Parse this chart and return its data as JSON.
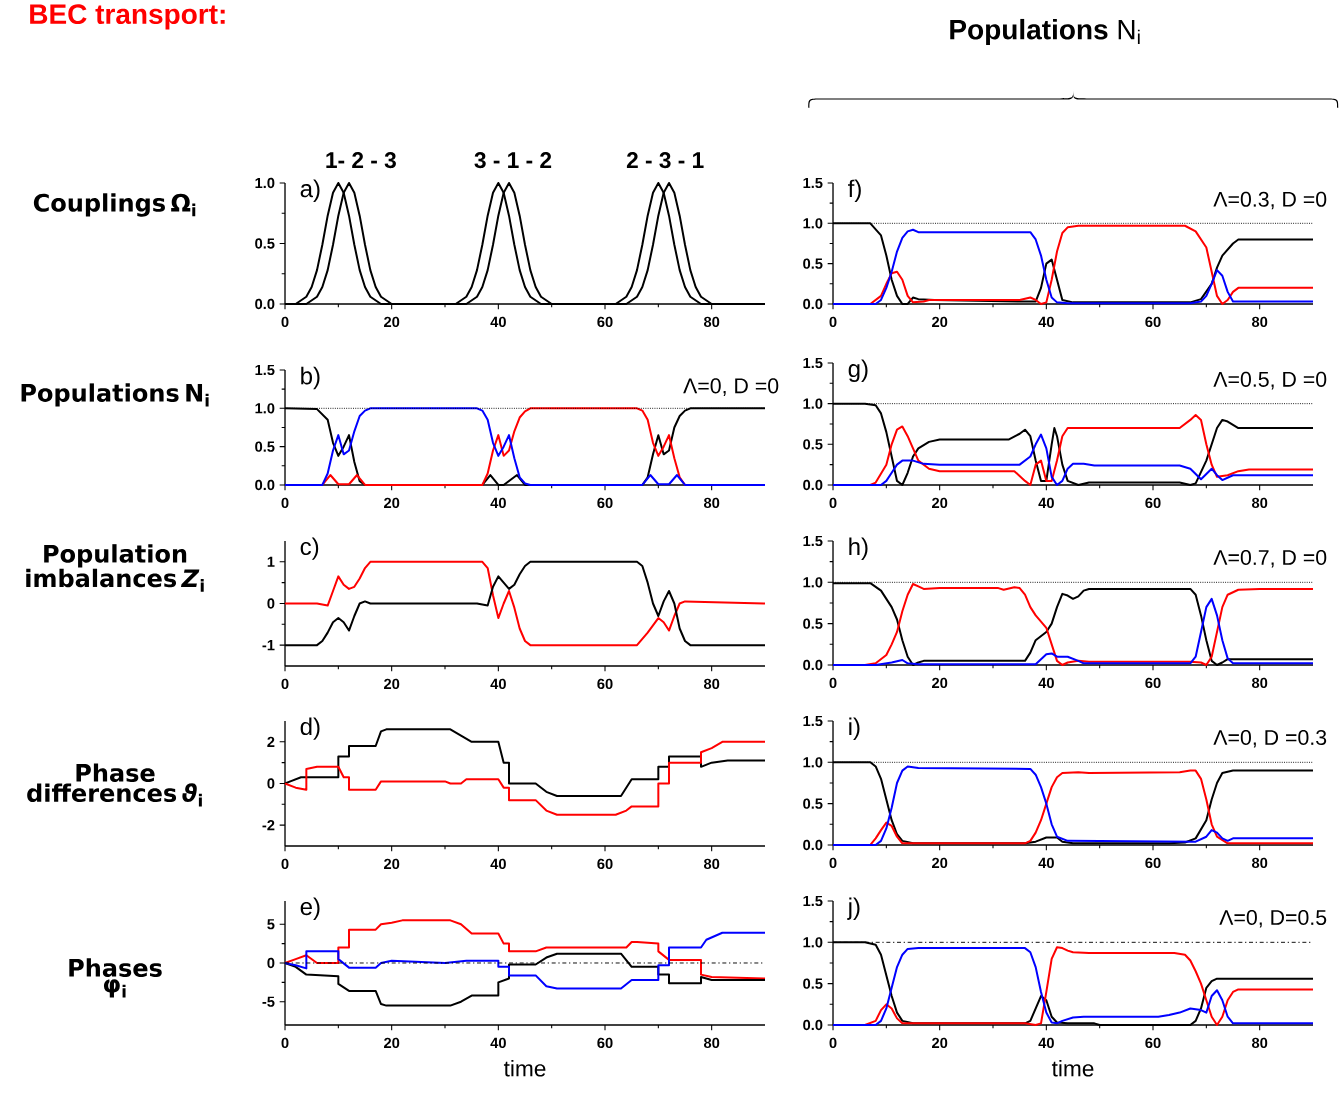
{
  "chart_data": [
    {
      "type": "line",
      "title": "BEC transport:",
      "ylabel": "Couplings Ω$_{i}$",
      "annotations": [
        "a)",
        "1- 2 - 3",
        "3 - 1 - 2",
        "2 - 3 - 1"
      ],
      "xlim": [
        0,
        90
      ],
      "xticks": [
        0,
        20,
        40,
        60,
        80
      ],
      "ylim": [
        0,
        1
      ],
      "yticks": [
        {
          "value": 0,
          "label": "0.0"
        },
        {
          "value": 0.5,
          "label": "0.5"
        },
        {
          "value": 1,
          "label": "1.0"
        }
      ],
      "series": [
        {
          "color": "#000000",
          "x": [
            0,
            2,
            4,
            5,
            6,
            7,
            8,
            9,
            10,
            11,
            12,
            13,
            14,
            15,
            16,
            18,
            32,
            34,
            35,
            36,
            37,
            38,
            39,
            40,
            41,
            42,
            43,
            44,
            45,
            46,
            48,
            62,
            64,
            65,
            66,
            67,
            68,
            69,
            70,
            71,
            72,
            73,
            74,
            75,
            76,
            78,
            90
          ],
          "values": [
            0,
            0,
            0.06,
            0.14,
            0.28,
            0.49,
            0.73,
            0.92,
            1,
            0.92,
            0.73,
            0.49,
            0.28,
            0.14,
            0.06,
            0,
            0,
            0.06,
            0.14,
            0.28,
            0.49,
            0.73,
            0.92,
            1,
            0.92,
            0.73,
            0.49,
            0.28,
            0.14,
            0.06,
            0,
            0,
            0.06,
            0.14,
            0.28,
            0.49,
            0.73,
            0.92,
            1,
            0.92,
            0.73,
            0.49,
            0.28,
            0.14,
            0.06,
            0,
            0
          ]
        },
        {
          "color": "#000000",
          "x": [
            0,
            4,
            6,
            7,
            8,
            9,
            10,
            11,
            12,
            13,
            14,
            15,
            16,
            17,
            18,
            20,
            34,
            36,
            37,
            38,
            39,
            40,
            41,
            42,
            43,
            44,
            45,
            46,
            47,
            48,
            50,
            64,
            66,
            67,
            68,
            69,
            70,
            71,
            72,
            73,
            74,
            75,
            76,
            77,
            78,
            80,
            90
          ],
          "values": [
            0,
            0,
            0.06,
            0.14,
            0.28,
            0.49,
            0.73,
            0.92,
            1,
            0.92,
            0.73,
            0.49,
            0.28,
            0.14,
            0.06,
            0,
            0,
            0.06,
            0.14,
            0.28,
            0.49,
            0.73,
            0.92,
            1,
            0.92,
            0.73,
            0.49,
            0.28,
            0.14,
            0.06,
            0,
            0,
            0.06,
            0.14,
            0.28,
            0.49,
            0.73,
            0.92,
            1,
            0.92,
            0.73,
            0.49,
            0.28,
            0.14,
            0.06,
            0,
            0
          ]
        }
      ]
    },
    {
      "type": "line",
      "ylabel": "Populations N$_{i}$",
      "annotations": [
        "b)",
        "Λ=0, D =0"
      ],
      "xlim": [
        0,
        90
      ],
      "xticks": [
        0,
        20,
        40,
        60,
        80
      ],
      "ylim": [
        0,
        1.5
      ],
      "yticks": [
        {
          "value": 0,
          "label": "0.0"
        },
        {
          "value": 0.5,
          "label": "0.5"
        },
        {
          "value": 1,
          "label": "1.0"
        },
        {
          "value": 1.5,
          "label": "1.5"
        }
      ],
      "ref_lines": [
        {
          "axis": "y",
          "value": 1,
          "line_style": "dotted"
        }
      ],
      "series": [
        {
          "color": "#000000",
          "x": [
            0,
            6,
            8,
            9,
            10,
            11,
            12,
            13,
            14,
            15,
            37,
            38.5,
            40,
            41,
            43.5,
            45,
            67,
            68,
            69,
            70,
            71,
            72,
            73,
            74,
            75,
            76,
            90
          ],
          "values": [
            1,
            0.99,
            0.85,
            0.55,
            0.38,
            0.5,
            0.65,
            0.3,
            0.05,
            0,
            0,
            0.13,
            0,
            0,
            0.13,
            0,
            0,
            0.1,
            0.4,
            0.65,
            0.4,
            0.45,
            0.75,
            0.9,
            0.97,
            1,
            1
          ]
        },
        {
          "color": "#ff0000",
          "x": [
            0,
            7,
            8.5,
            10,
            12,
            13.5,
            15,
            37,
            38,
            39,
            40,
            41,
            42,
            43,
            44,
            45,
            46,
            66,
            67,
            68,
            69,
            70,
            71,
            72,
            73,
            74,
            75,
            90
          ],
          "values": [
            0,
            0,
            0.13,
            0.01,
            0.01,
            0.13,
            0,
            0,
            0.15,
            0.45,
            0.65,
            0.38,
            0.45,
            0.7,
            0.88,
            0.96,
            1,
            1,
            0.97,
            0.85,
            0.55,
            0.38,
            0.5,
            0.65,
            0.35,
            0.1,
            0,
            0
          ]
        },
        {
          "color": "#0000ff",
          "x": [
            0,
            7,
            8,
            9,
            10,
            11,
            12,
            13,
            14,
            15,
            16,
            36,
            37,
            38,
            39,
            40,
            41,
            42,
            43,
            44,
            45,
            46,
            67,
            68.5,
            70,
            72,
            73.5,
            75,
            90
          ],
          "values": [
            0,
            0,
            0.15,
            0.45,
            0.65,
            0.4,
            0.45,
            0.7,
            0.9,
            0.97,
            1,
            1,
            0.97,
            0.85,
            0.55,
            0.38,
            0.5,
            0.65,
            0.35,
            0.1,
            0.02,
            0,
            0,
            0.13,
            0.01,
            0.01,
            0.13,
            0,
            0
          ]
        }
      ]
    },
    {
      "type": "line",
      "ylabel": "Population imbalances *Z*$_{i}$",
      "annotations": [
        "c)"
      ],
      "xlim": [
        0,
        90
      ],
      "xticks": [
        0,
        20,
        40,
        60,
        80
      ],
      "ylim": [
        -1.5,
        1.5
      ],
      "yticks": [
        -1,
        0,
        1
      ],
      "series": [
        {
          "color": "#ff0000",
          "x": [
            0,
            6,
            8,
            9,
            10,
            11,
            12,
            13,
            14,
            15,
            16,
            37,
            38,
            39,
            40,
            41,
            42,
            43,
            44,
            45,
            46,
            66,
            68,
            70,
            71,
            72,
            73,
            74,
            75,
            90
          ],
          "values": [
            0,
            0,
            -0.05,
            0.3,
            0.65,
            0.45,
            0.35,
            0.4,
            0.6,
            0.85,
            1,
            1,
            0.85,
            0.2,
            -0.35,
            0,
            0.3,
            -0.1,
            -0.6,
            -0.9,
            -1,
            -1,
            -0.7,
            -0.35,
            -0.45,
            -0.65,
            -0.3,
            0,
            0.05,
            0
          ]
        },
        {
          "color": "#000000",
          "x": [
            0,
            6,
            7,
            8,
            9,
            10,
            11,
            12,
            13,
            14,
            15,
            16,
            36,
            38,
            39,
            40,
            41,
            42,
            43,
            44,
            45,
            46,
            66,
            67,
            68,
            69,
            70,
            71,
            72,
            73,
            74,
            75,
            76,
            90
          ],
          "values": [
            -1,
            -1,
            -0.9,
            -0.7,
            -0.45,
            -0.35,
            -0.45,
            -0.65,
            -0.3,
            0,
            0.05,
            0,
            0,
            -0.05,
            0.4,
            0.65,
            0.5,
            0.35,
            0.45,
            0.7,
            0.9,
            1,
            1,
            0.9,
            0.5,
            0,
            -0.3,
            0.05,
            0.3,
            0,
            -0.6,
            -0.9,
            -1,
            -1
          ]
        }
      ]
    },
    {
      "type": "line",
      "ylabel": "Phase differences *ϑ*$_{i}$",
      "annotations": [
        "d)"
      ],
      "xlim": [
        0,
        90
      ],
      "xticks": [
        0,
        20,
        40,
        60,
        80
      ],
      "ylim": [
        -3,
        3
      ],
      "yticks": [
        -2,
        0,
        2
      ],
      "series": [
        {
          "color": "#000000",
          "x": [
            0,
            1,
            3,
            10,
            10,
            12,
            12,
            17,
            18,
            19,
            31,
            33,
            35,
            40,
            41,
            42,
            42,
            47,
            49,
            51,
            63,
            65,
            70,
            70,
            72,
            72,
            78,
            78,
            80,
            83,
            90
          ],
          "values": [
            0,
            0.1,
            0.3,
            0.3,
            1.3,
            1.3,
            1.8,
            1.8,
            2.5,
            2.6,
            2.6,
            2.3,
            2.0,
            2.0,
            1.0,
            1.0,
            0,
            0,
            -0.4,
            -0.6,
            -0.6,
            0.2,
            0.2,
            0.8,
            0.8,
            1.3,
            1.3,
            0.8,
            1.0,
            1.1,
            1.1
          ]
        },
        {
          "color": "#ff0000",
          "x": [
            0,
            2,
            4,
            4,
            6,
            10,
            11,
            12,
            12,
            17,
            18,
            30,
            31,
            33,
            34,
            40,
            41,
            42,
            42,
            47,
            49,
            51,
            62,
            64,
            65,
            70,
            70,
            72,
            72,
            78,
            78,
            80,
            82,
            90
          ],
          "values": [
            0,
            -0.2,
            -0.3,
            0.7,
            0.8,
            0.8,
            0.3,
            0.3,
            -0.3,
            -0.3,
            0.1,
            0.1,
            0,
            0,
            0.2,
            0.2,
            -0.2,
            -0.2,
            -0.8,
            -0.8,
            -1.3,
            -1.5,
            -1.5,
            -1.3,
            -1.1,
            -1.1,
            0,
            0,
            1.0,
            1.0,
            1.5,
            1.7,
            2.0,
            2.0
          ]
        }
      ]
    },
    {
      "type": "line",
      "ylabel": "Phases φ$_{i}$",
      "xlabel": "time",
      "annotations": [
        "e)"
      ],
      "xlim": [
        0,
        90
      ],
      "xticks": [
        0,
        20,
        40,
        60,
        80
      ],
      "ylim": [
        -8,
        8
      ],
      "yticks": [
        -5,
        0,
        5
      ],
      "ref_lines": [
        {
          "axis": "y",
          "value": 0,
          "line_style": "dashed"
        }
      ],
      "series": [
        {
          "color": "#ff0000",
          "x": [
            0,
            2,
            4,
            6,
            10,
            10,
            12,
            12,
            17,
            18,
            20,
            22,
            31,
            33,
            35,
            40,
            41,
            42,
            42,
            47,
            49,
            62,
            64,
            65,
            66,
            70,
            70,
            72,
            78,
            78,
            80,
            90
          ],
          "values": [
            0,
            0.5,
            1,
            0,
            0,
            2,
            2,
            4.3,
            4.3,
            5,
            5.2,
            5.5,
            5.5,
            5,
            3.8,
            3.8,
            2.5,
            2.5,
            1.5,
            1.5,
            2,
            2,
            2,
            2.7,
            2.7,
            2.5,
            1.5,
            0.4,
            0.4,
            -1.5,
            -1.8,
            -2
          ]
        },
        {
          "color": "#000000",
          "x": [
            0,
            2,
            4,
            10,
            10,
            12,
            17,
            18,
            19,
            31,
            33,
            35,
            40,
            40,
            42,
            42,
            47,
            49,
            51,
            63,
            65,
            70,
            70,
            72,
            72,
            78,
            78,
            80,
            90
          ],
          "values": [
            0,
            -0.5,
            -1.5,
            -1.7,
            -2.7,
            -3.6,
            -3.6,
            -5.3,
            -5.5,
            -5.5,
            -5,
            -4.2,
            -4.2,
            -2.5,
            -2,
            -0.2,
            -0.2,
            0.7,
            1.2,
            1.2,
            -0.5,
            -0.5,
            -1.5,
            -1.5,
            -2.6,
            -2.6,
            -1.8,
            -2.2,
            -2.2
          ]
        },
        {
          "color": "#0000ff",
          "x": [
            0,
            2,
            4,
            4,
            10,
            10,
            12,
            17,
            18,
            20,
            30,
            34,
            40,
            40,
            42,
            42,
            47,
            49,
            51,
            63,
            65,
            70,
            70,
            72,
            72,
            78,
            79,
            82,
            90
          ],
          "values": [
            0,
            -0.3,
            -0.7,
            1.5,
            1.5,
            0.5,
            -0.6,
            -0.6,
            0,
            0.3,
            0,
            0.3,
            0.3,
            -0.5,
            -0.5,
            -1.6,
            -1.6,
            -3,
            -3.3,
            -3.3,
            -2.2,
            -2.2,
            -0.3,
            -0.3,
            2,
            2,
            3,
            3.9,
            3.9
          ]
        }
      ]
    },
    {
      "type": "line",
      "title": "**Populations** N$_{i}$",
      "annotations": [
        "f)",
        "Λ=0.3, D =0"
      ],
      "xlim": [
        0,
        90
      ],
      "xticks": [
        0,
        20,
        40,
        60,
        80
      ],
      "ylim": [
        0,
        1.5
      ],
      "yticks": [
        {
          "value": 0,
          "label": "0.0"
        },
        {
          "value": 0.5,
          "label": "0.5"
        },
        {
          "value": 1,
          "label": "1.0"
        },
        {
          "value": 1.5,
          "label": "1.5"
        }
      ],
      "ref_lines": [
        {
          "axis": "y",
          "value": 1,
          "line_style": "dotted"
        }
      ],
      "series": [
        {
          "color": "#000000",
          "x": [
            0,
            7,
            9,
            10,
            11,
            12,
            13,
            14,
            15,
            16,
            19,
            36,
            38,
            39,
            40,
            41,
            42,
            43,
            45,
            67,
            69,
            71,
            72,
            73,
            75,
            76,
            90
          ],
          "values": [
            1,
            1,
            0.85,
            0.6,
            0.3,
            0.1,
            0,
            0,
            0.08,
            0.06,
            0.05,
            0.03,
            0.03,
            0.2,
            0.5,
            0.55,
            0.3,
            0.05,
            0.02,
            0.02,
            0.06,
            0.25,
            0.45,
            0.6,
            0.75,
            0.8,
            0.8
          ]
        },
        {
          "color": "#ff0000",
          "x": [
            0,
            7,
            9,
            10,
            11,
            12,
            13,
            14,
            15,
            17,
            18,
            35,
            37,
            38,
            39,
            40,
            41,
            42,
            43,
            44,
            46,
            66,
            68,
            70,
            71,
            72,
            73,
            74,
            75,
            76,
            90
          ],
          "values": [
            0,
            0,
            0.1,
            0.25,
            0.38,
            0.4,
            0.3,
            0.1,
            0.02,
            0.03,
            0.05,
            0.05,
            0.08,
            0.05,
            0,
            0.02,
            0.3,
            0.65,
            0.88,
            0.95,
            0.97,
            0.97,
            0.9,
            0.7,
            0.4,
            0.1,
            0,
            0.05,
            0.15,
            0.2,
            0.2
          ]
        },
        {
          "color": "#0000ff",
          "x": [
            0,
            8,
            9,
            10,
            11,
            12,
            13,
            14,
            15,
            16,
            37,
            38,
            39,
            40,
            41,
            42,
            44,
            67,
            69,
            70,
            71,
            72,
            73,
            74,
            75,
            90
          ],
          "values": [
            0,
            0,
            0.05,
            0.2,
            0.4,
            0.65,
            0.82,
            0.9,
            0.92,
            0.89,
            0.89,
            0.8,
            0.6,
            0.3,
            0.08,
            0.02,
            0.01,
            0.01,
            0.03,
            0.1,
            0.25,
            0.42,
            0.35,
            0.15,
            0.03,
            0.03
          ]
        }
      ]
    },
    {
      "type": "line",
      "annotations": [
        "g)",
        "Λ=0.5, D =0"
      ],
      "xlim": [
        0,
        90
      ],
      "xticks": [
        0,
        20,
        40,
        60,
        80
      ],
      "ylim": [
        0,
        1.5
      ],
      "yticks": [
        {
          "value": 0,
          "label": "0.0"
        },
        {
          "value": 0.5,
          "label": "0.5"
        },
        {
          "value": 1,
          "label": "1.0"
        },
        {
          "value": 1.5,
          "label": "1.5"
        }
      ],
      "ref_lines": [
        {
          "axis": "y",
          "value": 1,
          "line_style": "dotted"
        }
      ],
      "series": [
        {
          "color": "#000000",
          "x": [
            0,
            6,
            8,
            9,
            10,
            11,
            12,
            13,
            14,
            15,
            16,
            18,
            20,
            33,
            35,
            36,
            37,
            38,
            39,
            40,
            41,
            41.5,
            42,
            43,
            44,
            46,
            48,
            65,
            67,
            68,
            70,
            72,
            73,
            74,
            76,
            90
          ],
          "values": [
            1,
            1,
            0.98,
            0.88,
            0.65,
            0.35,
            0.05,
            0,
            0.15,
            0.35,
            0.45,
            0.53,
            0.56,
            0.56,
            0.63,
            0.68,
            0.6,
            0.3,
            0.05,
            0.05,
            0.5,
            0.7,
            0.6,
            0.25,
            0.05,
            0,
            0.03,
            0.03,
            0,
            0.02,
            0.3,
            0.7,
            0.8,
            0.78,
            0.7,
            0.7
          ]
        },
        {
          "color": "#ff0000",
          "x": [
            0,
            7,
            8,
            10,
            11,
            12,
            13,
            14,
            15,
            16,
            18,
            20,
            34,
            36,
            37,
            38,
            39,
            40,
            41,
            42,
            43,
            44,
            46,
            65,
            67,
            68,
            69,
            70,
            71,
            72,
            74,
            76,
            78,
            90
          ],
          "values": [
            0,
            0,
            0.03,
            0.25,
            0.5,
            0.68,
            0.72,
            0.6,
            0.45,
            0.3,
            0.2,
            0.17,
            0.17,
            0.05,
            0,
            0.25,
            0.3,
            0.05,
            0.05,
            0.3,
            0.6,
            0.7,
            0.7,
            0.7,
            0.8,
            0.86,
            0.8,
            0.5,
            0.25,
            0.1,
            0.12,
            0.17,
            0.19,
            0.19
          ]
        },
        {
          "color": "#0000ff",
          "x": [
            0,
            9,
            10,
            11,
            12,
            13,
            15,
            17,
            20,
            35,
            37,
            38,
            39,
            40,
            41,
            42,
            43,
            44,
            45,
            47,
            49,
            65,
            67,
            69,
            71,
            72,
            73,
            75,
            90
          ],
          "values": [
            0,
            0,
            0.05,
            0.15,
            0.25,
            0.3,
            0.3,
            0.26,
            0.25,
            0.25,
            0.35,
            0.5,
            0.62,
            0.45,
            0.1,
            0,
            0.05,
            0.2,
            0.26,
            0.26,
            0.24,
            0.24,
            0.2,
            0.07,
            0.2,
            0.12,
            0.06,
            0.12,
            0.12
          ]
        }
      ]
    },
    {
      "type": "line",
      "annotations": [
        "h)",
        "Λ=0.7, D =0"
      ],
      "xlim": [
        0,
        90
      ],
      "xticks": [
        0,
        20,
        40,
        60,
        80
      ],
      "ylim": [
        0,
        1.5
      ],
      "yticks": [
        {
          "value": 0,
          "label": "0.0"
        },
        {
          "value": 0.5,
          "label": "0.5"
        },
        {
          "value": 1,
          "label": "1.0"
        },
        {
          "value": 1.5,
          "label": "1.5"
        }
      ],
      "ref_lines": [
        {
          "axis": "y",
          "value": 1,
          "line_style": "dotted"
        }
      ],
      "series": [
        {
          "color": "#000000",
          "x": [
            0,
            7,
            9,
            11,
            12,
            13,
            14,
            15,
            16,
            17,
            20,
            35,
            36,
            37,
            38,
            40,
            41,
            42,
            43,
            44,
            45,
            46,
            47,
            48,
            67,
            68,
            69,
            70,
            71,
            72,
            73,
            74,
            90
          ],
          "values": [
            0.99,
            0.99,
            0.9,
            0.7,
            0.55,
            0.3,
            0.1,
            0,
            0.03,
            0.05,
            0.05,
            0.05,
            0.05,
            0.15,
            0.3,
            0.4,
            0.5,
            0.7,
            0.86,
            0.84,
            0.8,
            0.83,
            0.9,
            0.92,
            0.92,
            0.85,
            0.6,
            0.3,
            0.05,
            0,
            0.03,
            0.07,
            0.07
          ]
        },
        {
          "color": "#ff0000",
          "x": [
            0,
            6,
            8,
            10,
            11,
            12,
            13,
            14,
            15,
            16,
            17,
            20,
            31,
            32,
            34,
            35,
            36,
            37,
            38,
            40,
            41,
            42,
            43,
            44,
            46,
            48,
            67,
            69,
            70,
            71,
            72,
            73,
            74,
            76,
            80,
            90
          ],
          "values": [
            0,
            0,
            0.02,
            0.12,
            0.25,
            0.4,
            0.65,
            0.85,
            0.98,
            0.95,
            0.92,
            0.93,
            0.93,
            0.91,
            0.94,
            0.93,
            0.85,
            0.7,
            0.6,
            0.45,
            0.25,
            0.05,
            0,
            0.03,
            0.05,
            0.04,
            0.04,
            0.03,
            0,
            0.1,
            0.4,
            0.7,
            0.85,
            0.91,
            0.92,
            0.92
          ]
        },
        {
          "color": "#0000ff",
          "x": [
            0,
            8,
            11,
            13,
            14,
            16,
            38,
            39,
            40,
            41,
            42,
            44,
            46,
            47,
            67,
            68,
            69,
            70,
            71,
            72,
            73,
            74,
            75,
            90
          ],
          "values": [
            0,
            0,
            0.03,
            0.06,
            0.02,
            0.01,
            0.01,
            0.07,
            0.13,
            0.14,
            0.1,
            0.1,
            0.05,
            0.02,
            0.02,
            0.1,
            0.4,
            0.7,
            0.8,
            0.6,
            0.3,
            0.08,
            0.02,
            0.02
          ]
        }
      ]
    },
    {
      "type": "line",
      "annotations": [
        "i)",
        "Λ=0, D =0.3"
      ],
      "xlim": [
        0,
        90
      ],
      "xticks": [
        0,
        20,
        40,
        60,
        80
      ],
      "ylim": [
        0,
        1.5
      ],
      "yticks": [
        {
          "value": 0,
          "label": "0.0"
        },
        {
          "value": 0.5,
          "label": "0.5"
        },
        {
          "value": 1,
          "label": "1.0"
        },
        {
          "value": 1.5,
          "label": "1.5"
        }
      ],
      "ref_lines": [
        {
          "axis": "y",
          "value": 1,
          "line_style": "dotted"
        }
      ],
      "series": [
        {
          "color": "#000000",
          "x": [
            0,
            7,
            8,
            9,
            10,
            11,
            12,
            13,
            15,
            36,
            38,
            40,
            42,
            43,
            45,
            63,
            66,
            68,
            70,
            71,
            72,
            73,
            75,
            90
          ],
          "values": [
            1,
            1,
            0.95,
            0.8,
            0.55,
            0.3,
            0.13,
            0.05,
            0.02,
            0.02,
            0.04,
            0.09,
            0.09,
            0.04,
            0.02,
            0.02,
            0.03,
            0.08,
            0.3,
            0.55,
            0.75,
            0.87,
            0.9,
            0.9
          ]
        },
        {
          "color": "#ff0000",
          "x": [
            0,
            7,
            8,
            9,
            10,
            11,
            12,
            13,
            15,
            36,
            37,
            38,
            39,
            40,
            41,
            42,
            43,
            46,
            48,
            65,
            67,
            68,
            69,
            70,
            71,
            72,
            74,
            90
          ],
          "values": [
            0,
            0,
            0.08,
            0.18,
            0.27,
            0.23,
            0.1,
            0.02,
            0.02,
            0.02,
            0.05,
            0.15,
            0.3,
            0.5,
            0.7,
            0.82,
            0.87,
            0.88,
            0.87,
            0.88,
            0.9,
            0.9,
            0.8,
            0.55,
            0.25,
            0.1,
            0.02,
            0.02
          ]
        },
        {
          "color": "#0000ff",
          "x": [
            0,
            8,
            9,
            10,
            11,
            12,
            13,
            14,
            16,
            37,
            38,
            39,
            40,
            41,
            42,
            44,
            68,
            70,
            71,
            72,
            73,
            74,
            75,
            90
          ],
          "values": [
            0,
            0,
            0.05,
            0.2,
            0.45,
            0.75,
            0.9,
            0.95,
            0.93,
            0.92,
            0.85,
            0.7,
            0.5,
            0.25,
            0.1,
            0.05,
            0.04,
            0.1,
            0.18,
            0.15,
            0.08,
            0.05,
            0.08,
            0.08
          ]
        }
      ]
    },
    {
      "type": "line",
      "xlabel": "time",
      "annotations": [
        "j)",
        "Λ=0, D=0.5"
      ],
      "xlim": [
        0,
        90
      ],
      "xticks": [
        0,
        20,
        40,
        60,
        80
      ],
      "ylim": [
        0,
        1.5
      ],
      "yticks": [
        {
          "value": 0,
          "label": "0.0"
        },
        {
          "value": 0.5,
          "label": "0.5"
        },
        {
          "value": 1,
          "label": "1.0"
        },
        {
          "value": 1.5,
          "label": "1.5"
        }
      ],
      "ref_lines": [
        {
          "axis": "y",
          "value": 1,
          "line_style": "dashed"
        }
      ],
      "series": [
        {
          "color": "#000000",
          "x": [
            0,
            6,
            8,
            9,
            10,
            11,
            12,
            13,
            15,
            36,
            37,
            38,
            39,
            40,
            41,
            42,
            44,
            49,
            50,
            67,
            68,
            69,
            70,
            71,
            72,
            90
          ],
          "values": [
            1,
            1,
            0.97,
            0.85,
            0.6,
            0.35,
            0.15,
            0.05,
            0.02,
            0.02,
            0.05,
            0.2,
            0.35,
            0.3,
            0.1,
            0.03,
            0.02,
            0.02,
            0,
            0,
            0.05,
            0.2,
            0.45,
            0.53,
            0.56,
            0.56
          ]
        },
        {
          "color": "#ff0000",
          "x": [
            0,
            6,
            8,
            9,
            10,
            11,
            12,
            13,
            36,
            38,
            39,
            40,
            41,
            42,
            43,
            44,
            45,
            48,
            64,
            66,
            67,
            68,
            69,
            70,
            71,
            72,
            73,
            74,
            75,
            76,
            90
          ],
          "values": [
            0,
            0,
            0.05,
            0.18,
            0.25,
            0.2,
            0.08,
            0.02,
            0.02,
            0,
            0.02,
            0.4,
            0.8,
            0.94,
            0.93,
            0.9,
            0.88,
            0.87,
            0.87,
            0.85,
            0.78,
            0.65,
            0.5,
            0.3,
            0.1,
            0,
            0.1,
            0.3,
            0.4,
            0.43,
            0.43
          ]
        },
        {
          "color": "#0000ff",
          "x": [
            0,
            8,
            9,
            10,
            11,
            12,
            13,
            14,
            16,
            36,
            37,
            38,
            39,
            40,
            41,
            42,
            43,
            45,
            47,
            61,
            63,
            65,
            67,
            69,
            70,
            71,
            72,
            73,
            74,
            75,
            90
          ],
          "values": [
            0,
            0,
            0.05,
            0.2,
            0.45,
            0.7,
            0.85,
            0.92,
            0.93,
            0.93,
            0.88,
            0.7,
            0.4,
            0.15,
            0.03,
            0.02,
            0.05,
            0.09,
            0.1,
            0.1,
            0.12,
            0.15,
            0.2,
            0.18,
            0.15,
            0.35,
            0.42,
            0.3,
            0.1,
            0.02,
            0.02
          ]
        }
      ]
    }
  ]
}
